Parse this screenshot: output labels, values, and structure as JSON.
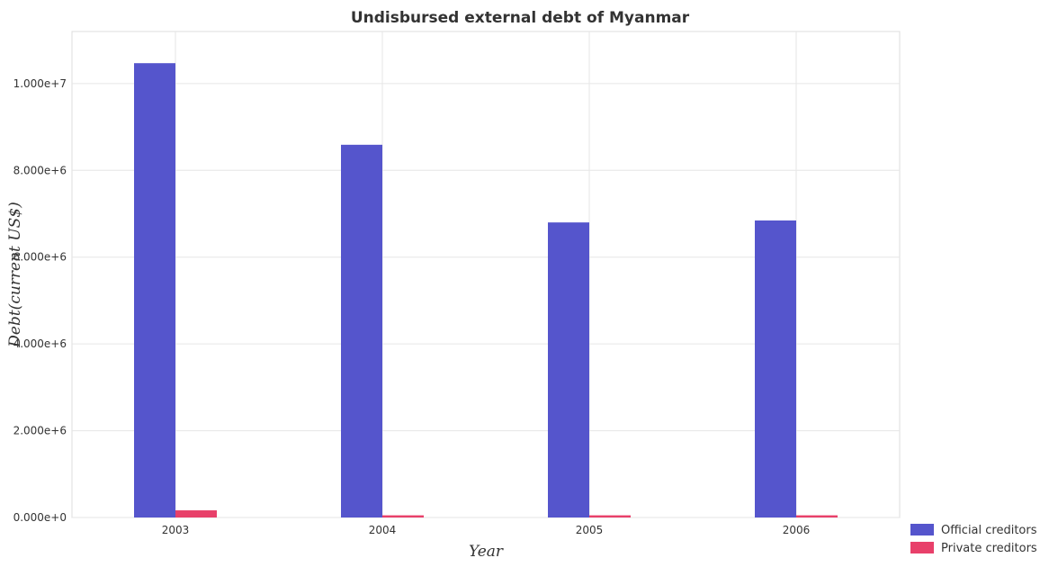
{
  "chart_data": {
    "type": "bar",
    "title": "Undisbursed external debt of Myanmar",
    "xlabel": "Year",
    "ylabel": "Debt(current US$)",
    "categories": [
      "2003",
      "2004",
      "2005",
      "2006"
    ],
    "series": [
      {
        "name": "Official creditors",
        "color": "#5555cc",
        "values": [
          10470000,
          8590000,
          6800000,
          6845000
        ]
      },
      {
        "name": "Private creditors",
        "color": "#e8406a",
        "values": [
          165000,
          50000,
          50000,
          50000
        ]
      }
    ],
    "ylim": [
      0,
      11200000
    ],
    "yticks": [
      0,
      2000000,
      4000000,
      6000000,
      8000000,
      10000000
    ],
    "ytick_labels": [
      "0.000e+0",
      "2.000e+6",
      "4.000e+6",
      "6.000e+6",
      "8.000e+6",
      "1.000e+7"
    ],
    "legend_position": "bottom-right",
    "grid": true
  }
}
